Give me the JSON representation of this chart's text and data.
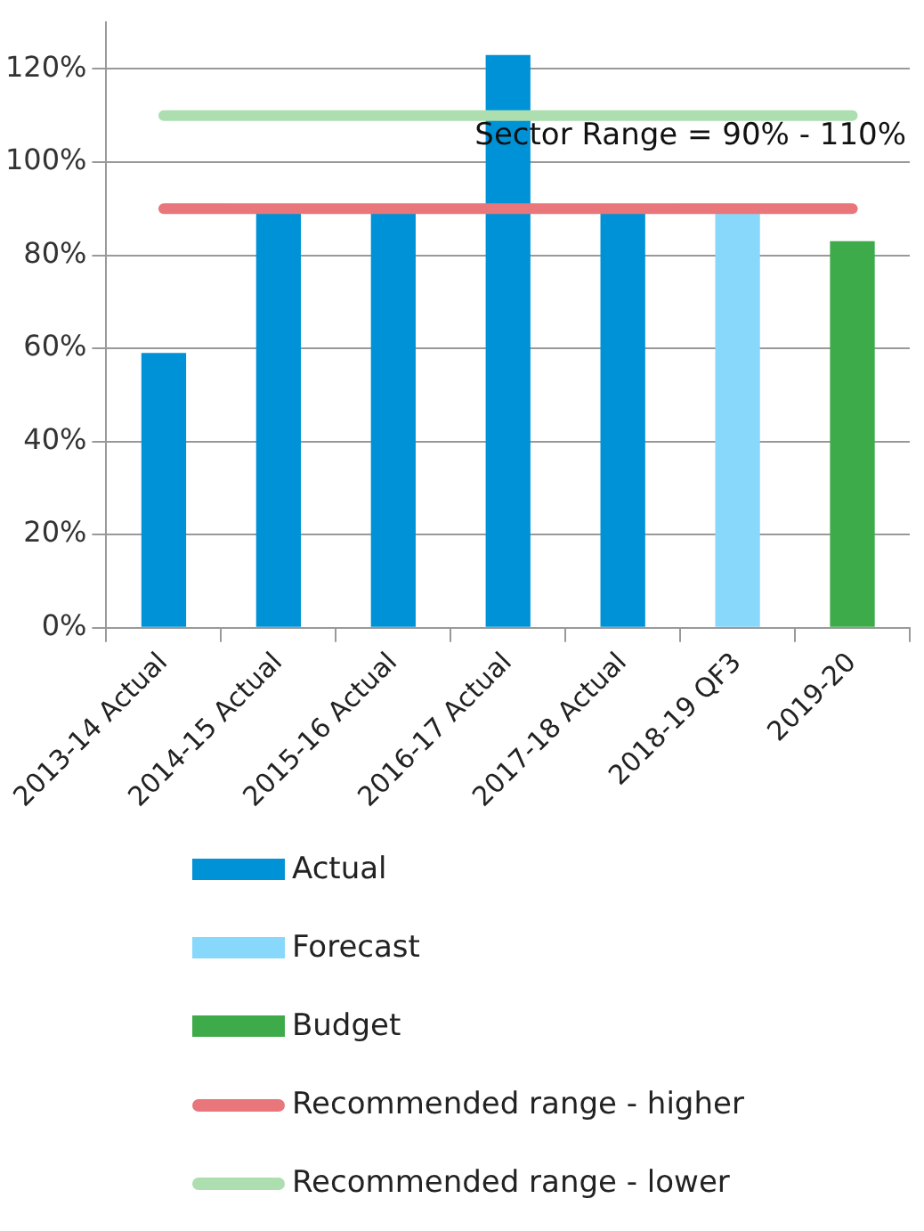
{
  "chart_data": {
    "type": "bar",
    "categories": [
      "2013-14 Actual",
      "2014-15 Actual",
      "2015-16 Actual",
      "2016-17 Actual",
      "2017-18 Actual",
      "2018-19 QF3",
      "2019-20"
    ],
    "series": [
      {
        "name": "Actual",
        "color": "#0092d6",
        "values": [
          59,
          89,
          89,
          123,
          89,
          null,
          null
        ]
      },
      {
        "name": "Forecast",
        "color": "#88d8fc",
        "values": [
          null,
          null,
          null,
          null,
          null,
          89,
          null
        ]
      },
      {
        "name": "Budget",
        "color": "#3dab4a",
        "values": [
          null,
          null,
          null,
          null,
          null,
          null,
          83
        ]
      },
      {
        "name": "Recommended range - higher",
        "type": "line",
        "color": "#e8767b",
        "values": [
          90,
          90,
          90,
          90,
          90,
          90,
          90
        ]
      },
      {
        "name": "Recommended range - lower",
        "type": "line",
        "color": "#acdeb0",
        "values": [
          110,
          110,
          110,
          110,
          110,
          110,
          110
        ]
      }
    ],
    "ylim": [
      0,
      130
    ],
    "yticks": [
      {
        "value": 0,
        "label": "0%"
      },
      {
        "value": 20,
        "label": "20%"
      },
      {
        "value": 40,
        "label": "40%"
      },
      {
        "value": 60,
        "label": "60%"
      },
      {
        "value": 80,
        "label": "80%"
      },
      {
        "value": 100,
        "label": "100%"
      },
      {
        "value": 120,
        "label": "120%"
      }
    ],
    "grid": "y",
    "legend": "bottom",
    "marker": "none",
    "line_style": "solid",
    "annotations": [
      "Sector Range = 90% - 110%"
    ]
  }
}
